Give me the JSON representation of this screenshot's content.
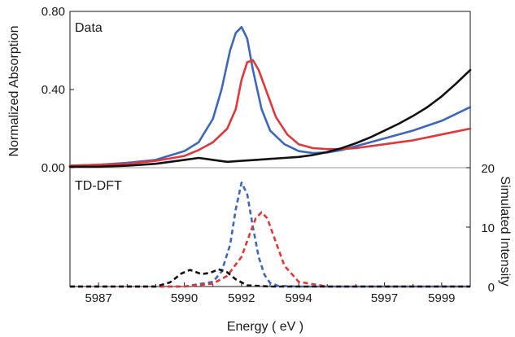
{
  "chart_data": {
    "type": "line",
    "x_axis": {
      "label": "Energy ( eV )",
      "range": [
        5986,
        6000
      ],
      "ticks": [
        5987,
        5990,
        5992,
        5994,
        5997,
        5999
      ]
    },
    "panels": [
      {
        "name": "Data",
        "y_axis": {
          "label": "Normalized Absorption",
          "range": [
            0,
            0.8
          ],
          "ticks": [
            0.0,
            0.4,
            0.8
          ],
          "tick_labels": [
            "0.00",
            "0.40",
            "0.80"
          ]
        },
        "series": [
          {
            "color": "#3d67b8",
            "x": [
              5986,
              5987,
              5988,
              5989,
              5990,
              5990.5,
              5991,
              5991.3,
              5991.6,
              5991.8,
              5992,
              5992.2,
              5992.4,
              5992.7,
              5993,
              5993.5,
              5994,
              5994.5,
              5995,
              5995.5,
              5996,
              5997,
              5998,
              5999,
              6000
            ],
            "y": [
              0.01,
              0.015,
              0.025,
              0.04,
              0.085,
              0.13,
              0.25,
              0.4,
              0.6,
              0.69,
              0.72,
              0.66,
              0.5,
              0.3,
              0.19,
              0.12,
              0.085,
              0.075,
              0.078,
              0.09,
              0.11,
              0.15,
              0.19,
              0.24,
              0.31
            ]
          },
          {
            "color": "#e0373a",
            "x": [
              5986,
              5987,
              5988,
              5989,
              5990,
              5990.5,
              5991,
              5991.5,
              5991.8,
              5992,
              5992.2,
              5992.4,
              5992.6,
              5992.9,
              5993.2,
              5993.6,
              5994,
              5994.5,
              5995,
              5995.5,
              5996,
              5997,
              5998,
              5999,
              6000
            ],
            "y": [
              0.01,
              0.015,
              0.02,
              0.035,
              0.06,
              0.09,
              0.13,
              0.2,
              0.3,
              0.45,
              0.54,
              0.55,
              0.5,
              0.38,
              0.26,
              0.17,
              0.12,
              0.1,
              0.095,
              0.095,
              0.1,
              0.12,
              0.14,
              0.17,
              0.2
            ]
          },
          {
            "color": "#111111",
            "x": [
              5986,
              5987,
              5988,
              5989,
              5990,
              5990.5,
              5991,
              5991.5,
              5992,
              5992.5,
              5993,
              5993.5,
              5994,
              5994.5,
              5995,
              5995.5,
              5996,
              5996.5,
              5997,
              5997.5,
              5998,
              5998.5,
              5999,
              5999.5,
              6000
            ],
            "y": [
              0.005,
              0.005,
              0.01,
              0.02,
              0.04,
              0.05,
              0.04,
              0.03,
              0.035,
              0.04,
              0.045,
              0.05,
              0.055,
              0.065,
              0.08,
              0.1,
              0.125,
              0.155,
              0.19,
              0.225,
              0.265,
              0.31,
              0.365,
              0.43,
              0.5
            ]
          }
        ]
      },
      {
        "name": "TD-DFT",
        "y_axis": {
          "label": "Simulated Intensity",
          "range": [
            0,
            20
          ],
          "ticks": [
            0,
            10,
            20
          ],
          "tick_labels": [
            "0",
            "10",
            "20"
          ]
        },
        "series": [
          {
            "color": "#3d67b8",
            "style": "dashed",
            "x": [
              5986,
              5990,
              5991,
              5991.3,
              5991.6,
              5991.8,
              5992,
              5992.2,
              5992.4,
              5992.6,
              5992.8,
              5993,
              5993.3,
              5994,
              6000
            ],
            "y": [
              0,
              0,
              0.8,
              2.5,
              7,
              13,
              17.5,
              15.5,
              10,
              5,
              2,
              0.6,
              0.1,
              0,
              0
            ]
          },
          {
            "color": "#e0373a",
            "style": "dashed",
            "x": [
              5986,
              5990,
              5991,
              5991.5,
              5992,
              5992.3,
              5992.5,
              5992.7,
              5992.9,
              5993.2,
              5993.5,
              5994,
              5995,
              6000
            ],
            "y": [
              0,
              0,
              0.5,
              1.8,
              5,
              9,
              11.5,
              12.5,
              11.5,
              7.5,
              3.5,
              0.8,
              0,
              0
            ]
          },
          {
            "color": "#111111",
            "style": "dashed",
            "x": [
              5986,
              5989,
              5989.5,
              5989.9,
              5990.2,
              5990.6,
              5990.9,
              5991.2,
              5991.5,
              5991.8,
              5992.2,
              5993,
              6000
            ],
            "y": [
              0,
              0,
              0.7,
              2.2,
              2.8,
              2.1,
              2.3,
              2.9,
              2.4,
              1.2,
              0.2,
              0,
              0
            ]
          }
        ]
      }
    ]
  }
}
